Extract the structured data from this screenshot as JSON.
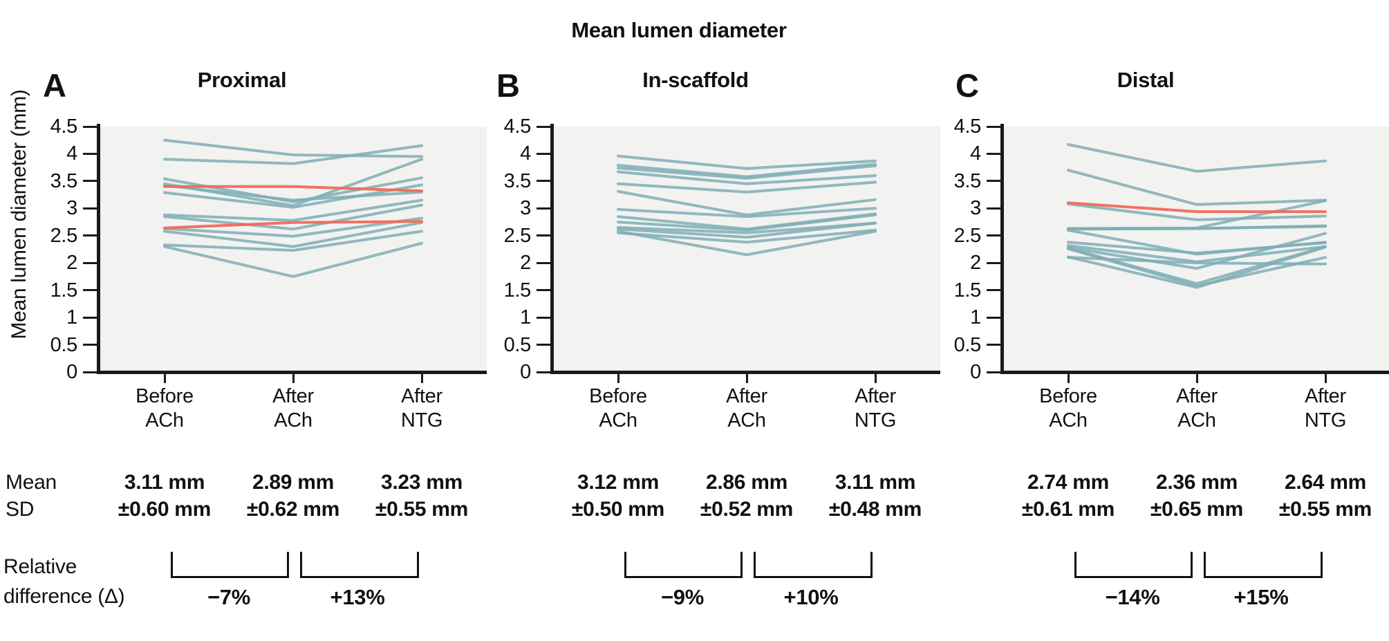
{
  "figure_title": "Mean lumen diameter",
  "colors": {
    "line": "#7FAEB5",
    "highlight": "#EE6C56",
    "plot_bg": "#F2F2F1",
    "axis": "#1A1A1A",
    "text": "#111111"
  },
  "y_axis": {
    "label": "Mean lumen diameter (mm)",
    "ticks": [
      "4.5",
      "4",
      "3.5",
      "3",
      "2.5",
      "2",
      "1.5",
      "1",
      "0.5",
      "0"
    ],
    "min": 0,
    "max": 4.5
  },
  "x_tick_lines": [
    [
      "Before",
      "ACh"
    ],
    [
      "After",
      "ACh"
    ],
    [
      "After",
      "NTG"
    ]
  ],
  "row_labels": {
    "mean": "Mean",
    "sd": "SD",
    "relative_line1": "Relative",
    "relative_line2": "difference (Δ)"
  },
  "chart_data": [
    {
      "type": "line",
      "panel_label": "A",
      "title": "Proximal",
      "categories": [
        "Before ACh",
        "After ACh",
        "After NTG"
      ],
      "ylim": [
        0,
        4.5
      ],
      "ylabel": "Mean lumen diameter (mm)",
      "grid": false,
      "legend": "none",
      "series": [
        {
          "values": [
            4.25,
            3.98,
            3.95
          ]
        },
        {
          "values": [
            3.9,
            3.82,
            4.15
          ]
        },
        {
          "values": [
            3.54,
            3.12,
            3.56
          ]
        },
        {
          "values": [
            3.45,
            3.05,
            3.9
          ]
        },
        {
          "values": [
            3.42,
            3.15,
            3.3
          ]
        },
        {
          "values": [
            3.29,
            3.02,
            3.43
          ]
        },
        {
          "values": [
            2.88,
            2.78,
            3.15
          ]
        },
        {
          "values": [
            2.85,
            2.62,
            3.06
          ]
        },
        {
          "values": [
            2.63,
            2.49,
            2.82
          ]
        },
        {
          "values": [
            2.58,
            2.3,
            2.74
          ]
        },
        {
          "values": [
            2.33,
            2.23,
            2.58
          ]
        },
        {
          "values": [
            2.3,
            1.75,
            2.36
          ]
        }
      ],
      "highlight_series": [
        {
          "values": [
            3.4,
            3.4,
            3.32
          ]
        },
        {
          "values": [
            2.64,
            2.74,
            2.76
          ]
        }
      ],
      "mean": [
        "3.11 mm",
        "2.89 mm",
        "3.23 mm"
      ],
      "sd": [
        "±0.60 mm",
        "±0.62 mm",
        "±0.55 mm"
      ],
      "relative_difference": [
        "−7%",
        "+13%"
      ]
    },
    {
      "type": "line",
      "panel_label": "B",
      "title": "In-scaffold",
      "categories": [
        "Before ACh",
        "After ACh",
        "After NTG"
      ],
      "ylim": [
        0,
        4.5
      ],
      "ylabel": "Mean lumen diameter (mm)",
      "grid": false,
      "legend": "none",
      "series": [
        {
          "values": [
            3.96,
            3.73,
            3.87
          ]
        },
        {
          "values": [
            3.79,
            3.58,
            3.81
          ]
        },
        {
          "values": [
            3.74,
            3.55,
            3.78
          ]
        },
        {
          "values": [
            3.67,
            3.45,
            3.6
          ]
        },
        {
          "values": [
            3.45,
            3.3,
            3.48
          ]
        },
        {
          "values": [
            3.31,
            2.88,
            3.16
          ]
        },
        {
          "values": [
            2.98,
            2.85,
            3.0
          ]
        },
        {
          "values": [
            2.85,
            2.62,
            2.9
          ]
        },
        {
          "values": [
            2.75,
            2.6,
            2.88
          ]
        },
        {
          "values": [
            2.65,
            2.55,
            2.73
          ]
        },
        {
          "values": [
            2.62,
            2.47,
            2.73
          ]
        },
        {
          "values": [
            2.55,
            2.38,
            2.6
          ]
        },
        {
          "values": [
            2.58,
            2.15,
            2.58
          ]
        }
      ],
      "highlight_series": [],
      "mean": [
        "3.12 mm",
        "2.86 mm",
        "3.11 mm"
      ],
      "sd": [
        "±0.50 mm",
        "±0.52 mm",
        "±0.48 mm"
      ],
      "relative_difference": [
        "−9%",
        "+10%"
      ]
    },
    {
      "type": "line",
      "panel_label": "C",
      "title": "Distal",
      "categories": [
        "Before ACh",
        "After ACh",
        "After NTG"
      ],
      "ylim": [
        0,
        4.5
      ],
      "ylabel": "Mean lumen diameter (mm)",
      "grid": false,
      "legend": "none",
      "series": [
        {
          "values": [
            4.17,
            3.68,
            3.87
          ]
        },
        {
          "values": [
            3.7,
            3.07,
            3.15
          ]
        },
        {
          "values": [
            3.08,
            2.79,
            2.86
          ]
        },
        {
          "values": [
            2.63,
            2.64,
            3.14
          ]
        },
        {
          "values": [
            2.62,
            2.63,
            2.68
          ]
        },
        {
          "values": [
            2.62,
            2.63,
            2.67
          ]
        },
        {
          "values": [
            2.6,
            2.16,
            2.38
          ]
        },
        {
          "values": [
            2.38,
            2.18,
            2.37
          ]
        },
        {
          "values": [
            2.32,
            2.02,
            2.3
          ]
        },
        {
          "values": [
            2.28,
            1.9,
            2.54
          ]
        },
        {
          "values": [
            2.27,
            1.62,
            2.3
          ]
        },
        {
          "values": [
            2.26,
            1.58,
            2.1
          ]
        },
        {
          "values": [
            2.11,
            1.55,
            2.29
          ]
        },
        {
          "values": [
            2.1,
            2.0,
            1.98
          ]
        }
      ],
      "highlight_series": [
        {
          "values": [
            3.1,
            2.94,
            2.94
          ]
        }
      ],
      "mean": [
        "2.74 mm",
        "2.36 mm",
        "2.64 mm"
      ],
      "sd": [
        "±0.61 mm",
        "±0.65 mm",
        "±0.55 mm"
      ],
      "relative_difference": [
        "−14%",
        "+15%"
      ]
    }
  ]
}
